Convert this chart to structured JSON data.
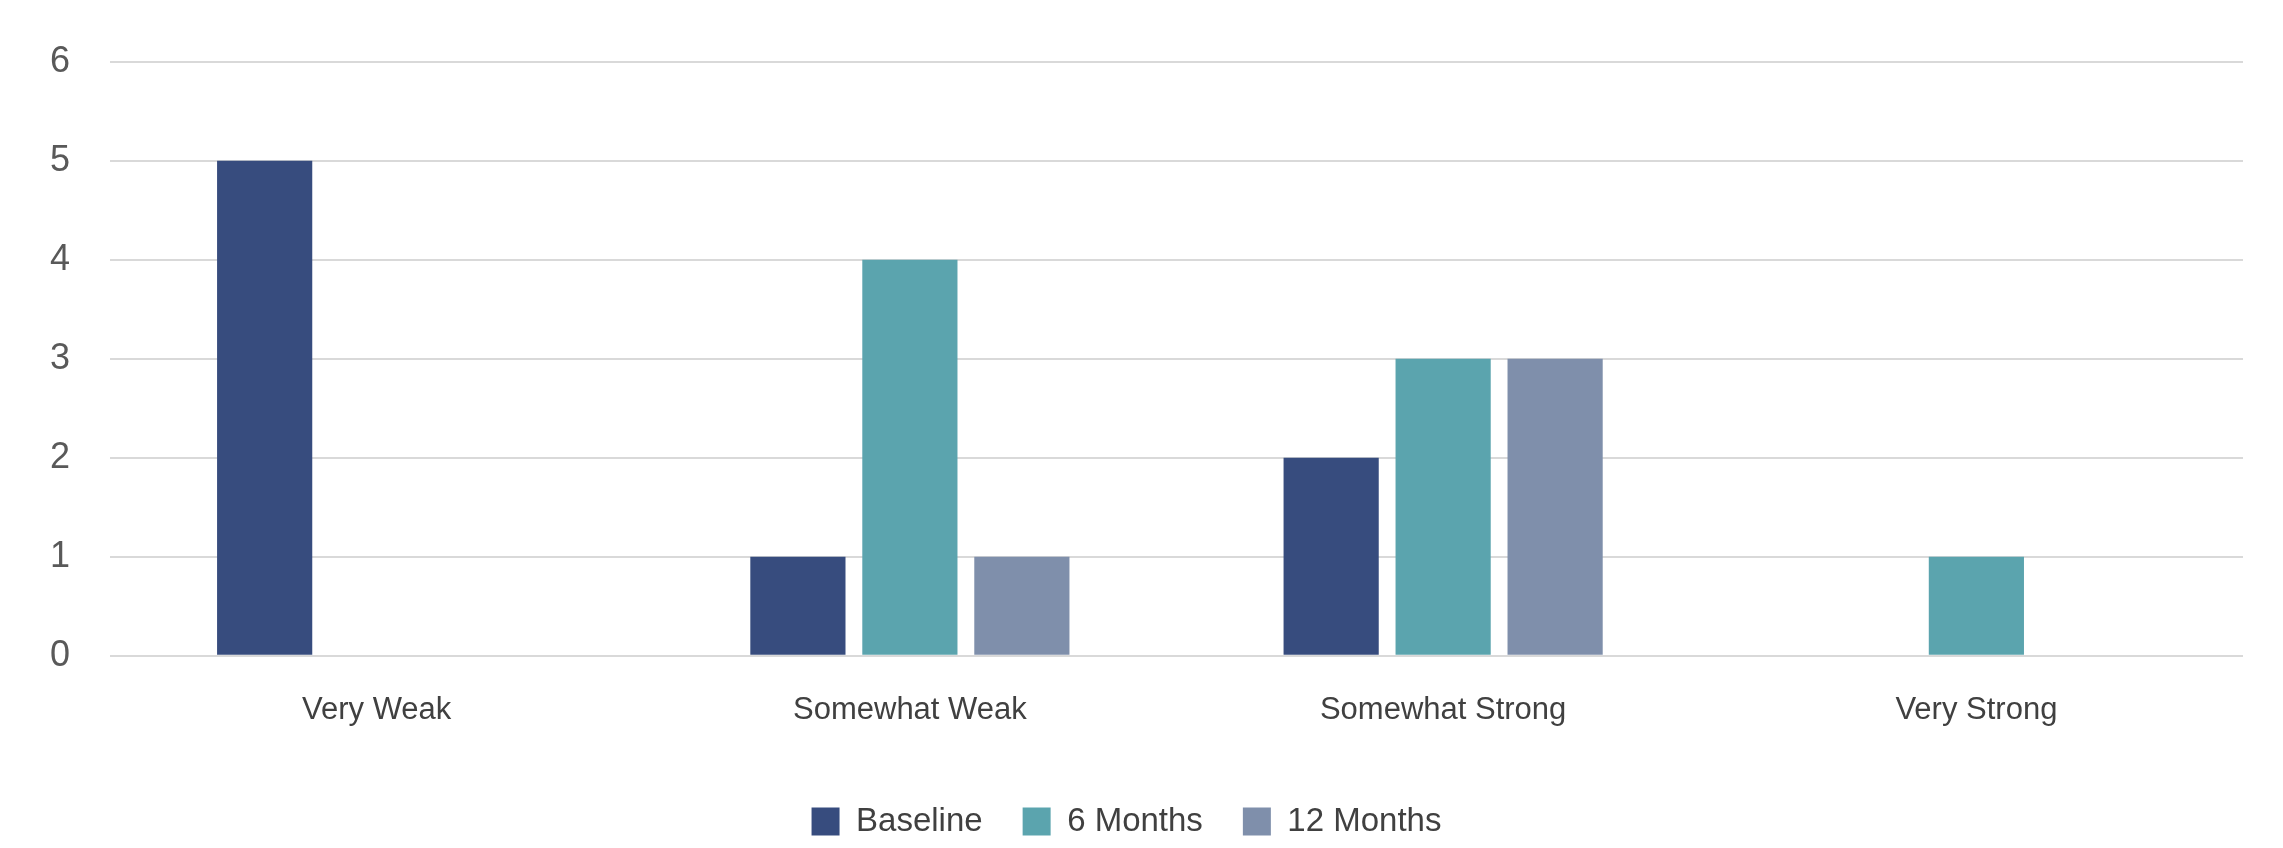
{
  "chart_data": {
    "type": "bar",
    "categories": [
      "Very Weak",
      "Somewhat Weak",
      "Somewhat Strong",
      "Very Strong"
    ],
    "series": [
      {
        "name": "Baseline",
        "color": "#374c7e",
        "values": [
          5,
          1,
          2,
          0
        ]
      },
      {
        "name": "6 Months",
        "color": "#5ba4ae",
        "values": [
          0,
          4,
          3,
          1
        ]
      },
      {
        "name": "12 Months",
        "color": "#7f8fab",
        "values": [
          0,
          1,
          3,
          0
        ]
      }
    ],
    "ylim": [
      0,
      6
    ],
    "yticks": [
      0,
      1,
      2,
      3,
      4,
      5,
      6
    ],
    "grid": "y",
    "legend": "bottom"
  }
}
